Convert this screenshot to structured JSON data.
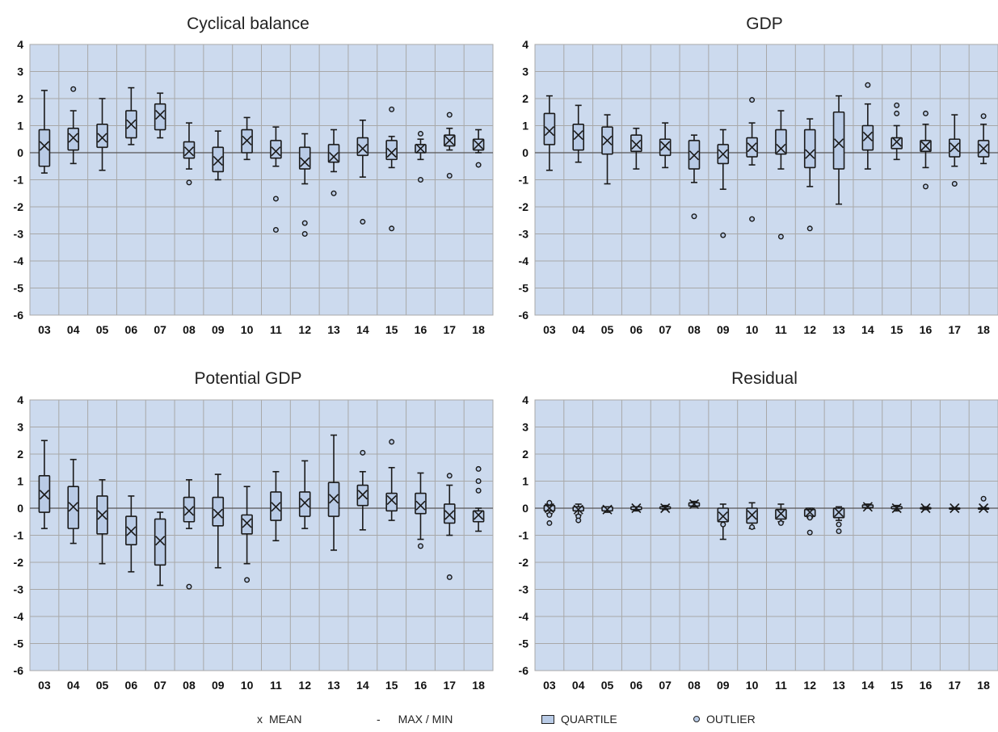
{
  "legend": {
    "mean_symbol": "x",
    "mean_label": "MEAN",
    "maxmin_symbol": "-",
    "maxmin_label": "MAX / MIN",
    "quartile_label": "QUARTILE",
    "outlier_label": "OUTLIER"
  },
  "colors": {
    "plot_background": "#ccdaee",
    "box_fill": "#b9cbe6",
    "grid": "#a8a8a8",
    "line": "#1a1a1a"
  },
  "chart_data": [
    {
      "type": "box",
      "title": "Cyclical balance",
      "categories": [
        "03",
        "04",
        "05",
        "06",
        "07",
        "08",
        "09",
        "10",
        "11",
        "12",
        "13",
        "14",
        "15",
        "16",
        "17",
        "18"
      ],
      "yticks": [
        4,
        3,
        2,
        1,
        0,
        -1,
        -2,
        -3,
        -4,
        -5,
        -6
      ],
      "ylim": [
        -6,
        4
      ],
      "grid": true,
      "boxes": [
        {
          "min": -0.75,
          "q1": -0.5,
          "q3": 0.85,
          "max": 2.3,
          "mean": 0.25,
          "outliers": []
        },
        {
          "min": -0.4,
          "q1": 0.1,
          "q3": 0.9,
          "max": 1.55,
          "mean": 0.55,
          "outliers": [
            2.35
          ]
        },
        {
          "min": -0.65,
          "q1": 0.2,
          "q3": 1.05,
          "max": 2.0,
          "mean": 0.55,
          "outliers": []
        },
        {
          "min": 0.3,
          "q1": 0.55,
          "q3": 1.55,
          "max": 2.4,
          "mean": 1.05,
          "outliers": []
        },
        {
          "min": 0.55,
          "q1": 0.85,
          "q3": 1.8,
          "max": 2.2,
          "mean": 1.4,
          "outliers": []
        },
        {
          "min": -0.6,
          "q1": -0.2,
          "q3": 0.4,
          "max": 1.1,
          "mean": 0.05,
          "outliers": [
            -1.1
          ]
        },
        {
          "min": -1.0,
          "q1": -0.7,
          "q3": 0.2,
          "max": 0.8,
          "mean": -0.3,
          "outliers": []
        },
        {
          "min": -0.25,
          "q1": 0.0,
          "q3": 0.85,
          "max": 1.3,
          "mean": 0.45,
          "outliers": []
        },
        {
          "min": -0.5,
          "q1": -0.2,
          "q3": 0.45,
          "max": 0.95,
          "mean": 0.05,
          "outliers": [
            -1.7,
            -2.85
          ]
        },
        {
          "min": -1.15,
          "q1": -0.6,
          "q3": 0.2,
          "max": 0.7,
          "mean": -0.35,
          "outliers": [
            -2.6,
            -3.0
          ]
        },
        {
          "min": -0.7,
          "q1": -0.35,
          "q3": 0.3,
          "max": 0.85,
          "mean": -0.15,
          "outliers": [
            -1.5
          ]
        },
        {
          "min": -0.9,
          "q1": -0.1,
          "q3": 0.55,
          "max": 1.2,
          "mean": 0.15,
          "outliers": [
            -2.55
          ]
        },
        {
          "min": -0.55,
          "q1": -0.25,
          "q3": 0.45,
          "max": 0.6,
          "mean": 0.0,
          "outliers": [
            1.6,
            -2.8
          ]
        },
        {
          "min": -0.25,
          "q1": 0.0,
          "q3": 0.3,
          "max": 0.5,
          "mean": 0.15,
          "outliers": [
            0.7,
            -1.0
          ]
        },
        {
          "min": 0.1,
          "q1": 0.25,
          "q3": 0.65,
          "max": 0.9,
          "mean": 0.45,
          "outliers": [
            1.4,
            -0.85
          ]
        },
        {
          "min": 0.0,
          "q1": 0.1,
          "q3": 0.5,
          "max": 0.85,
          "mean": 0.3,
          "outliers": [
            -0.45
          ]
        }
      ]
    },
    {
      "type": "box",
      "title": "GDP",
      "categories": [
        "03",
        "04",
        "05",
        "06",
        "07",
        "08",
        "09",
        "10",
        "11",
        "12",
        "13",
        "14",
        "15",
        "16",
        "17",
        "18"
      ],
      "yticks": [
        4,
        3,
        2,
        1,
        0,
        -1,
        -2,
        -3,
        -4,
        -5,
        -6
      ],
      "ylim": [
        -6,
        4
      ],
      "grid": true,
      "boxes": [
        {
          "min": -0.65,
          "q1": 0.3,
          "q3": 1.45,
          "max": 2.1,
          "mean": 0.8,
          "outliers": []
        },
        {
          "min": -0.35,
          "q1": 0.1,
          "q3": 1.05,
          "max": 1.75,
          "mean": 0.65,
          "outliers": []
        },
        {
          "min": -1.15,
          "q1": -0.05,
          "q3": 0.95,
          "max": 1.4,
          "mean": 0.45,
          "outliers": []
        },
        {
          "min": -0.6,
          "q1": 0.05,
          "q3": 0.65,
          "max": 0.9,
          "mean": 0.3,
          "outliers": []
        },
        {
          "min": -0.55,
          "q1": -0.1,
          "q3": 0.5,
          "max": 1.1,
          "mean": 0.25,
          "outliers": []
        },
        {
          "min": -1.1,
          "q1": -0.6,
          "q3": 0.45,
          "max": 0.65,
          "mean": -0.1,
          "outliers": [
            -2.35
          ]
        },
        {
          "min": -1.35,
          "q1": -0.4,
          "q3": 0.3,
          "max": 0.85,
          "mean": -0.05,
          "outliers": [
            -3.05
          ]
        },
        {
          "min": -0.45,
          "q1": -0.15,
          "q3": 0.55,
          "max": 1.1,
          "mean": 0.2,
          "outliers": [
            1.95,
            -2.45
          ]
        },
        {
          "min": -0.6,
          "q1": -0.05,
          "q3": 0.85,
          "max": 1.55,
          "mean": 0.15,
          "outliers": [
            -3.1
          ]
        },
        {
          "min": -1.25,
          "q1": -0.55,
          "q3": 0.85,
          "max": 1.25,
          "mean": -0.05,
          "outliers": [
            -2.8
          ]
        },
        {
          "min": -1.9,
          "q1": -0.6,
          "q3": 1.5,
          "max": 2.1,
          "mean": 0.35,
          "outliers": []
        },
        {
          "min": -0.6,
          "q1": 0.1,
          "q3": 1.0,
          "max": 1.8,
          "mean": 0.6,
          "outliers": [
            2.5
          ]
        },
        {
          "min": -0.25,
          "q1": 0.15,
          "q3": 0.55,
          "max": 1.0,
          "mean": 0.4,
          "outliers": [
            1.75,
            1.45
          ]
        },
        {
          "min": -0.55,
          "q1": 0.05,
          "q3": 0.45,
          "max": 1.05,
          "mean": 0.25,
          "outliers": [
            1.45,
            -1.25
          ]
        },
        {
          "min": -0.5,
          "q1": -0.15,
          "q3": 0.5,
          "max": 1.4,
          "mean": 0.2,
          "outliers": [
            -1.15
          ]
        },
        {
          "min": -0.4,
          "q1": -0.15,
          "q3": 0.45,
          "max": 1.05,
          "mean": 0.15,
          "outliers": [
            1.35
          ]
        }
      ]
    },
    {
      "type": "box",
      "title": "Potential GDP",
      "categories": [
        "03",
        "04",
        "05",
        "06",
        "07",
        "08",
        "09",
        "10",
        "11",
        "12",
        "13",
        "14",
        "15",
        "16",
        "17",
        "18"
      ],
      "yticks": [
        4,
        3,
        2,
        1,
        0,
        -1,
        -2,
        -3,
        -4,
        -5,
        -6
      ],
      "ylim": [
        -6,
        4
      ],
      "grid": true,
      "boxes": [
        {
          "min": -0.75,
          "q1": -0.15,
          "q3": 1.2,
          "max": 2.5,
          "mean": 0.5,
          "outliers": []
        },
        {
          "min": -1.3,
          "q1": -0.75,
          "q3": 0.8,
          "max": 1.8,
          "mean": 0.05,
          "outliers": []
        },
        {
          "min": -2.05,
          "q1": -0.95,
          "q3": 0.45,
          "max": 1.05,
          "mean": -0.25,
          "outliers": []
        },
        {
          "min": -2.35,
          "q1": -1.35,
          "q3": -0.3,
          "max": 0.45,
          "mean": -0.85,
          "outliers": []
        },
        {
          "min": -2.85,
          "q1": -2.1,
          "q3": -0.4,
          "max": -0.15,
          "mean": -1.2,
          "outliers": []
        },
        {
          "min": -0.75,
          "q1": -0.5,
          "q3": 0.4,
          "max": 1.05,
          "mean": -0.1,
          "outliers": [
            -2.9
          ]
        },
        {
          "min": -2.2,
          "q1": -0.65,
          "q3": 0.4,
          "max": 1.25,
          "mean": -0.2,
          "outliers": []
        },
        {
          "min": -2.05,
          "q1": -0.95,
          "q3": -0.25,
          "max": 0.8,
          "mean": -0.55,
          "outliers": [
            -2.65
          ]
        },
        {
          "min": -1.2,
          "q1": -0.45,
          "q3": 0.6,
          "max": 1.35,
          "mean": 0.05,
          "outliers": []
        },
        {
          "min": -0.75,
          "q1": -0.3,
          "q3": 0.6,
          "max": 1.75,
          "mean": 0.2,
          "outliers": []
        },
        {
          "min": -1.55,
          "q1": -0.3,
          "q3": 0.95,
          "max": 2.7,
          "mean": 0.35,
          "outliers": []
        },
        {
          "min": -0.8,
          "q1": 0.1,
          "q3": 0.85,
          "max": 1.35,
          "mean": 0.5,
          "outliers": [
            2.05
          ]
        },
        {
          "min": -0.45,
          "q1": -0.1,
          "q3": 0.55,
          "max": 1.5,
          "mean": 0.3,
          "outliers": [
            2.45
          ]
        },
        {
          "min": -1.15,
          "q1": -0.2,
          "q3": 0.55,
          "max": 1.3,
          "mean": 0.1,
          "outliers": [
            -1.4
          ]
        },
        {
          "min": -1.0,
          "q1": -0.55,
          "q3": 0.15,
          "max": 0.85,
          "mean": -0.25,
          "outliers": [
            1.2,
            -2.55
          ]
        },
        {
          "min": -0.85,
          "q1": -0.5,
          "q3": -0.1,
          "max": 0.0,
          "mean": -0.25,
          "outliers": [
            1.45,
            1.0,
            0.65
          ]
        }
      ]
    },
    {
      "type": "box",
      "title": "Residual",
      "categories": [
        "03",
        "04",
        "05",
        "06",
        "07",
        "08",
        "09",
        "10",
        "11",
        "12",
        "13",
        "14",
        "15",
        "16",
        "17",
        "18"
      ],
      "yticks": [
        4,
        3,
        2,
        1,
        0,
        -1,
        -2,
        -3,
        -4,
        -5,
        -6
      ],
      "ylim": [
        -6,
        4
      ],
      "grid": true,
      "boxes": [
        {
          "min": -0.2,
          "q1": -0.1,
          "q3": 0.1,
          "max": 0.15,
          "mean": 0.0,
          "outliers": [
            0.2,
            -0.25,
            -0.55
          ]
        },
        {
          "min": -0.25,
          "q1": -0.1,
          "q3": 0.05,
          "max": 0.15,
          "mean": -0.05,
          "outliers": [
            -0.3,
            -0.45
          ]
        },
        {
          "min": -0.15,
          "q1": -0.1,
          "q3": 0.05,
          "max": 0.05,
          "mean": -0.05,
          "outliers": []
        },
        {
          "min": -0.1,
          "q1": -0.05,
          "q3": 0.05,
          "max": 0.05,
          "mean": 0.0,
          "outliers": []
        },
        {
          "min": -0.05,
          "q1": -0.02,
          "q3": 0.05,
          "max": 0.1,
          "mean": 0.0,
          "outliers": []
        },
        {
          "min": 0.05,
          "q1": 0.08,
          "q3": 0.2,
          "max": 0.25,
          "mean": 0.15,
          "outliers": []
        },
        {
          "min": -1.15,
          "q1": -0.5,
          "q3": 0.0,
          "max": 0.15,
          "mean": -0.3,
          "outliers": [
            -0.6
          ]
        },
        {
          "min": -0.75,
          "q1": -0.55,
          "q3": 0.0,
          "max": 0.2,
          "mean": -0.25,
          "outliers": [
            -0.7
          ]
        },
        {
          "min": -0.5,
          "q1": -0.4,
          "q3": -0.05,
          "max": 0.15,
          "mean": -0.2,
          "outliers": [
            -0.55
          ]
        },
        {
          "min": -0.35,
          "q1": -0.3,
          "q3": -0.05,
          "max": 0.0,
          "mean": -0.15,
          "outliers": [
            -0.35,
            -0.9
          ]
        },
        {
          "min": -0.45,
          "q1": -0.35,
          "q3": 0.0,
          "max": 0.05,
          "mean": -0.15,
          "outliers": [
            -0.6,
            -0.85
          ]
        },
        {
          "min": 0.0,
          "q1": 0.02,
          "q3": 0.12,
          "max": 0.15,
          "mean": 0.05,
          "outliers": []
        },
        {
          "min": -0.1,
          "q1": -0.02,
          "q3": 0.06,
          "max": 0.1,
          "mean": 0.0,
          "outliers": []
        },
        {
          "min": -0.05,
          "q1": -0.02,
          "q3": 0.02,
          "max": 0.05,
          "mean": 0.0,
          "outliers": []
        },
        {
          "min": -0.02,
          "q1": -0.01,
          "q3": 0.01,
          "max": 0.02,
          "mean": 0.0,
          "outliers": []
        },
        {
          "min": -0.02,
          "q1": -0.01,
          "q3": 0.01,
          "max": 0.02,
          "mean": 0.0,
          "outliers": [
            0.35
          ]
        }
      ]
    }
  ]
}
